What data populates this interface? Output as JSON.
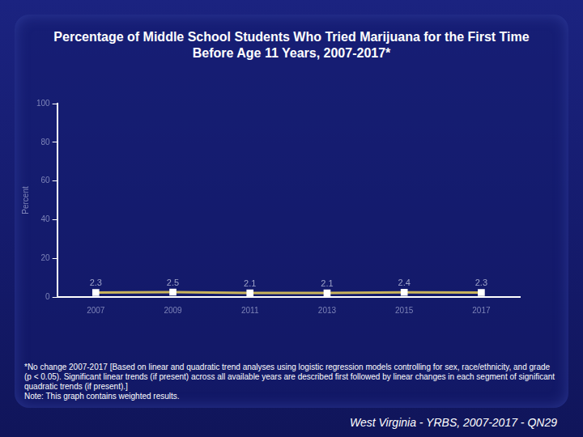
{
  "chart_data": {
    "type": "line",
    "title": "Percentage of Middle School Students Who Tried Marijuana for the First Time Before Age 11 Years, 2007-2017*",
    "y_label": "Percent",
    "categories": [
      "2007",
      "2009",
      "2011",
      "2013",
      "2015",
      "2017"
    ],
    "values": [
      2.3,
      2.5,
      2.1,
      2.1,
      2.4,
      2.3
    ],
    "color": "#c9b45c",
    "marker": "square",
    "ylim": [
      0,
      100
    ],
    "yticks": [
      0,
      20,
      40,
      60,
      80,
      100
    ],
    "grid": false,
    "data_labels": true,
    "footnote": "*No change 2007-2017 [Based on linear and quadratic trend analyses using logistic regression models controlling for sex, race/ethnicity, and grade (p < 0.05). Significant linear trends (if present) across all available years are described first followed by linear changes in each segment of significant quadratic trends (if present).]",
    "note": "Note: This graph contains weighted results.",
    "source": "West Virginia - YRBS, 2007-2017 - QN29"
  }
}
